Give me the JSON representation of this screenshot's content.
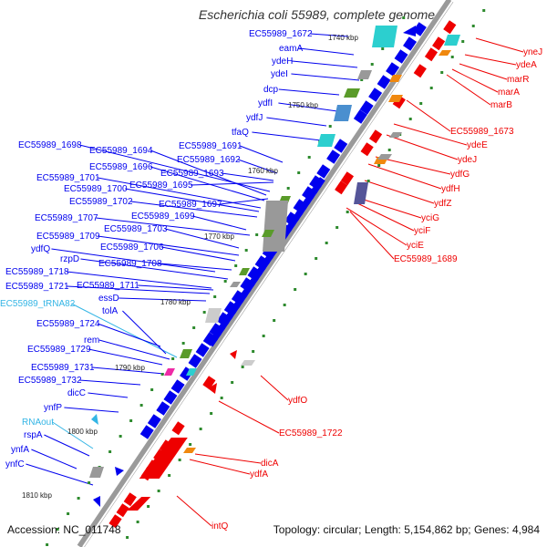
{
  "title": "Escherichia coli 55989, complete genome",
  "footer": {
    "accession": "Accession: NC_011748",
    "topology": "Topology: circular; Length: 5,154,862 bp; Genes: 4,984"
  },
  "colors": {
    "forward_gene": "#0000ee",
    "reverse_gene": "#ee0000",
    "rna_gene": "#33b5e5",
    "backbone": "#888888",
    "cds_teal": "#2ccfcf",
    "cds_green": "#5a9b2a",
    "cds_orange": "#f0880e",
    "cds_gray": "#999999",
    "dot_green": "#2d8a2d"
  },
  "kbp_ticks": [
    "1740 kbp",
    "1750 kbp",
    "1760 kbp",
    "1770 kbp",
    "1780 kbp",
    "1790 kbp",
    "1800 kbp",
    "1810 kbp"
  ],
  "labels_left": [
    "EC55989_1672",
    "eamA",
    "ydeH",
    "ydeI",
    "dcp",
    "ydfI",
    "ydfJ",
    "tfaQ",
    "EC55989_1691",
    "EC55989_1698",
    "EC55989_1694",
    "EC55989_1692",
    "EC55989_1696",
    "EC55989_1693",
    "EC55989_1701",
    "EC55989_1695",
    "EC55989_1700",
    "EC55989_1702",
    "EC55989_1697",
    "EC55989_1699",
    "EC55989_1707",
    "EC55989_1703",
    "EC55989_1709",
    "EC55989_1706",
    "ydfQ",
    "rzpD",
    "EC55989_1708",
    "EC55989_1718",
    "EC55989_1721",
    "EC55989_1711",
    "essD",
    "EC55989_tRNA82",
    "tolA",
    "EC55989_1724",
    "rem",
    "EC55989_1729",
    "EC55989_1731",
    "EC55989_1732",
    "dicC",
    "ynfP",
    "RNAout",
    "rspA",
    "ynfA",
    "ynfC"
  ],
  "labels_right": [
    "yneJ",
    "ydeA",
    "marR",
    "marA",
    "marB",
    "EC55989_1673",
    "ydeE",
    "ydeJ",
    "ydfG",
    "ydfH",
    "ydfZ",
    "yciG",
    "yciF",
    "yciE",
    "EC55989_1689",
    "ydfO",
    "EC55989_1722",
    "dicA",
    "ydfA",
    "intQ"
  ]
}
